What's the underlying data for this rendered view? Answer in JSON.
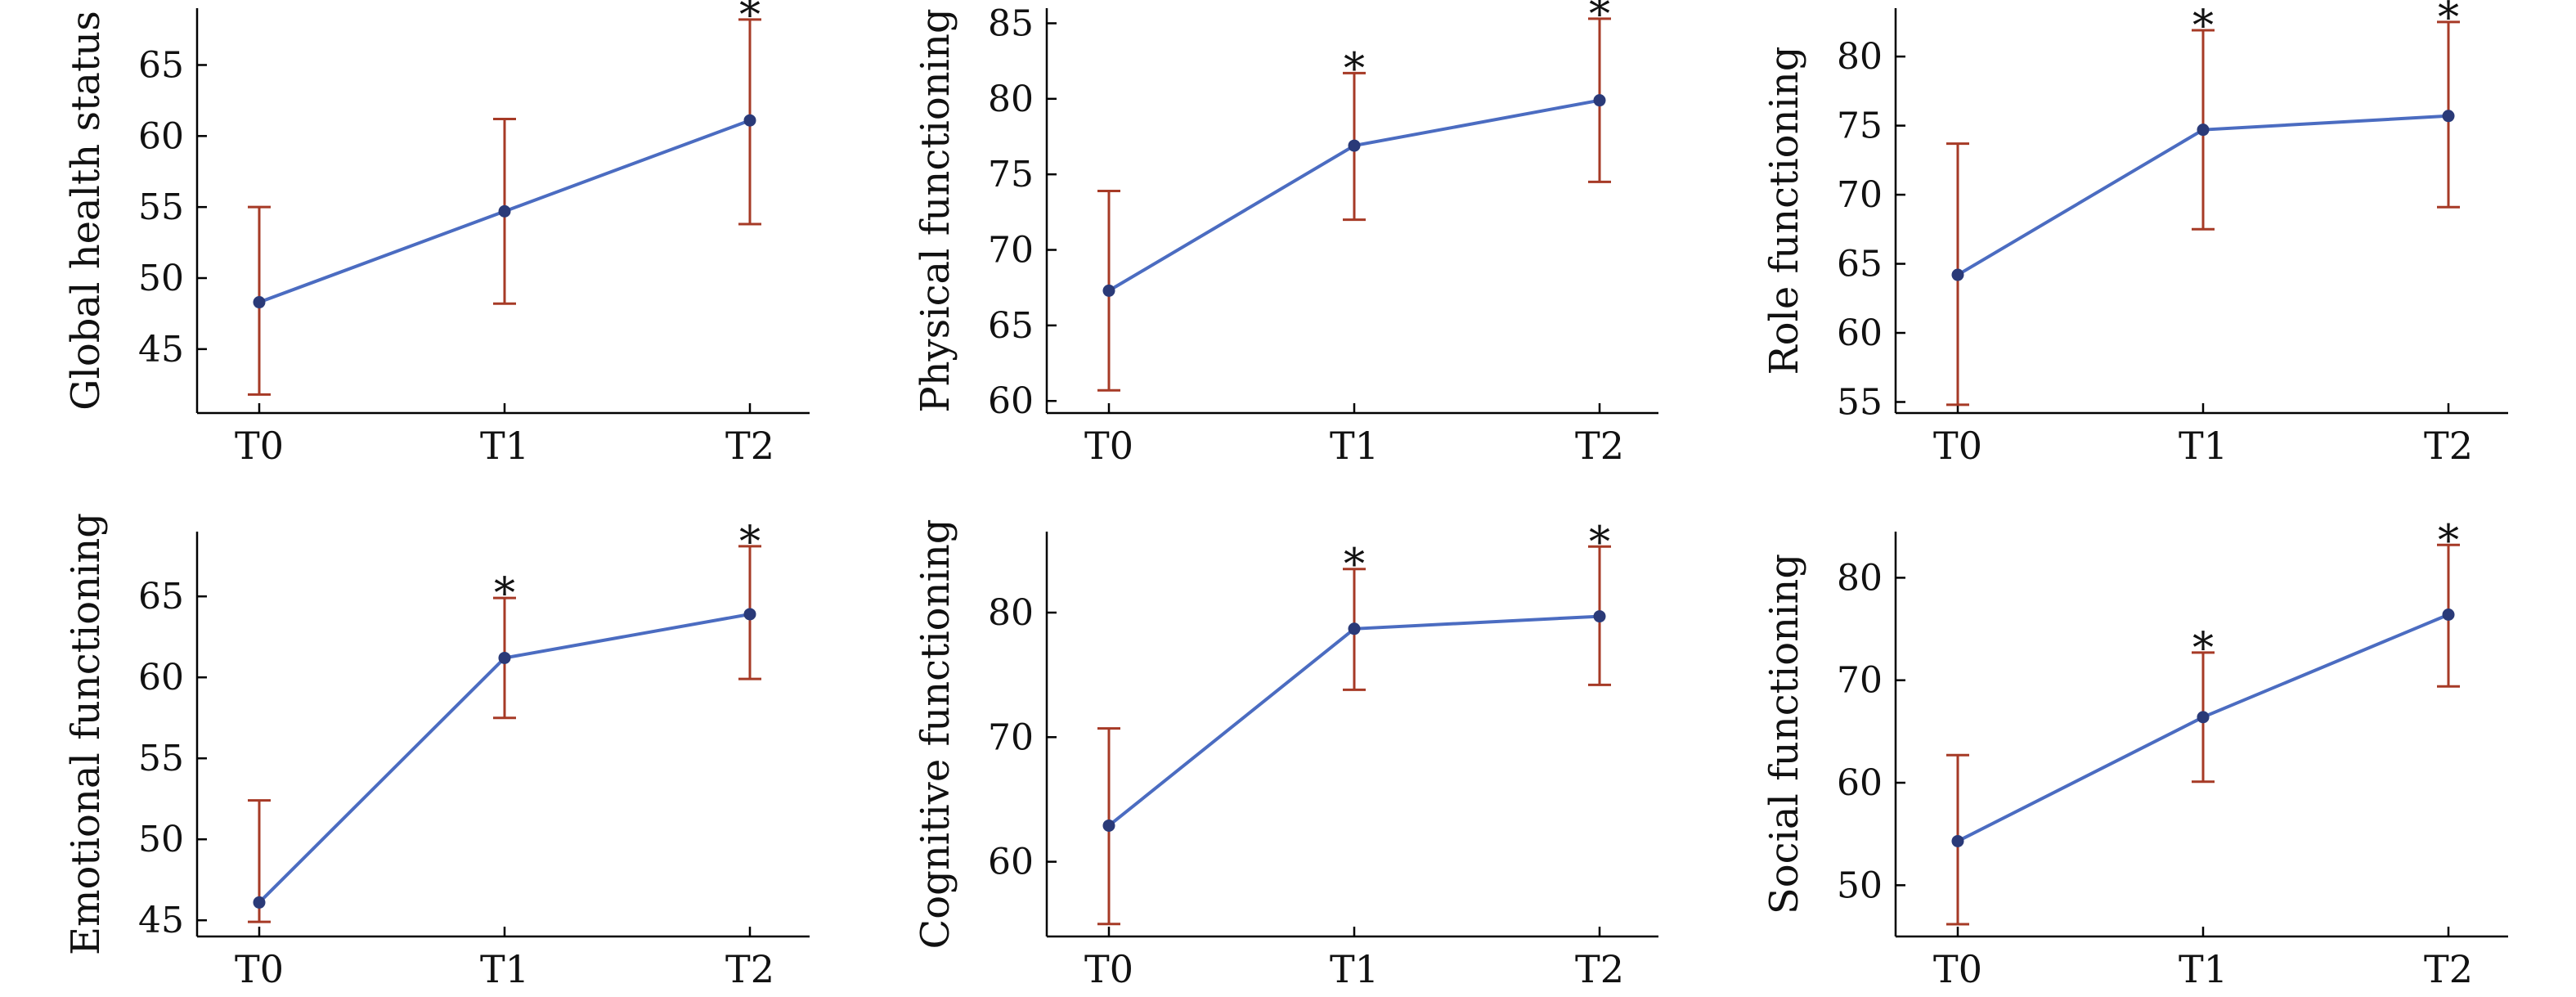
{
  "colors": {
    "line": "#4b6cc1",
    "marker": "#2a3a78",
    "error_bar": "#a63a26",
    "axis": "#000000"
  },
  "chart_data": [
    {
      "type": "line",
      "categories": [
        "T0",
        "T1",
        "T2"
      ],
      "ylabel": "Global health status",
      "ylim": [
        40.5,
        69
      ],
      "yticks": [
        45,
        50,
        55,
        60,
        65
      ],
      "series": [
        {
          "name": "Global health status",
          "values": [
            48.3,
            54.7,
            61.1
          ],
          "lower": [
            41.8,
            48.2,
            53.8
          ],
          "upper": [
            55.0,
            61.2,
            68.2
          ]
        }
      ],
      "annotations": [
        "",
        "",
        "*"
      ]
    },
    {
      "type": "line",
      "categories": [
        "T0",
        "T1",
        "T2"
      ],
      "ylabel": "Physical functioning",
      "ylim": [
        59.2,
        86
      ],
      "yticks": [
        60,
        65,
        70,
        75,
        80,
        85
      ],
      "series": [
        {
          "name": "Physical functioning",
          "values": [
            67.3,
            76.9,
            79.9
          ],
          "lower": [
            60.7,
            72.0,
            74.5
          ],
          "upper": [
            73.9,
            81.7,
            85.3
          ]
        }
      ],
      "annotations": [
        "",
        "*",
        "*"
      ]
    },
    {
      "type": "line",
      "categories": [
        "T0",
        "T1",
        "T2"
      ],
      "ylabel": "Role functioning",
      "ylim": [
        54.2,
        83.5
      ],
      "yticks": [
        55,
        60,
        65,
        70,
        75,
        80
      ],
      "series": [
        {
          "name": "Role functioning",
          "values": [
            64.2,
            74.7,
            75.7
          ],
          "lower": [
            54.8,
            67.5,
            69.1
          ],
          "upper": [
            73.7,
            81.9,
            82.5
          ]
        }
      ],
      "annotations": [
        "",
        "*",
        "*"
      ]
    },
    {
      "type": "line",
      "categories": [
        "T0",
        "T1",
        "T2"
      ],
      "ylabel": "Emotional functioning",
      "ylim": [
        44,
        69
      ],
      "yticks": [
        45,
        50,
        55,
        60,
        65
      ],
      "series": [
        {
          "name": "Emotional functioning",
          "values": [
            46.1,
            61.2,
            63.9
          ],
          "lower": [
            44.9,
            57.5,
            59.9
          ],
          "upper": [
            52.4,
            64.9,
            68.1
          ]
        }
      ],
      "annotations": [
        "",
        "*",
        "*"
      ]
    },
    {
      "type": "line",
      "categories": [
        "T0",
        "T1",
        "T2"
      ],
      "ylabel": "Cognitive functioning",
      "ylim": [
        54,
        86.5
      ],
      "yticks": [
        60,
        70,
        80
      ],
      "series": [
        {
          "name": "Cognitive functioning",
          "values": [
            62.9,
            78.7,
            79.7
          ],
          "lower": [
            55.0,
            73.8,
            74.2
          ],
          "upper": [
            70.7,
            83.5,
            85.3
          ]
        }
      ],
      "annotations": [
        "",
        "*",
        "*"
      ]
    },
    {
      "type": "line",
      "categories": [
        "T0",
        "T1",
        "T2"
      ],
      "ylabel": "Social functioning",
      "ylim": [
        45,
        84.5
      ],
      "yticks": [
        50,
        60,
        70,
        80
      ],
      "series": [
        {
          "name": "Social functioning",
          "values": [
            54.3,
            66.4,
            76.4
          ],
          "lower": [
            46.2,
            60.1,
            69.4
          ],
          "upper": [
            62.7,
            72.7,
            83.2
          ]
        }
      ],
      "annotations": [
        "",
        "*",
        "*"
      ]
    }
  ]
}
